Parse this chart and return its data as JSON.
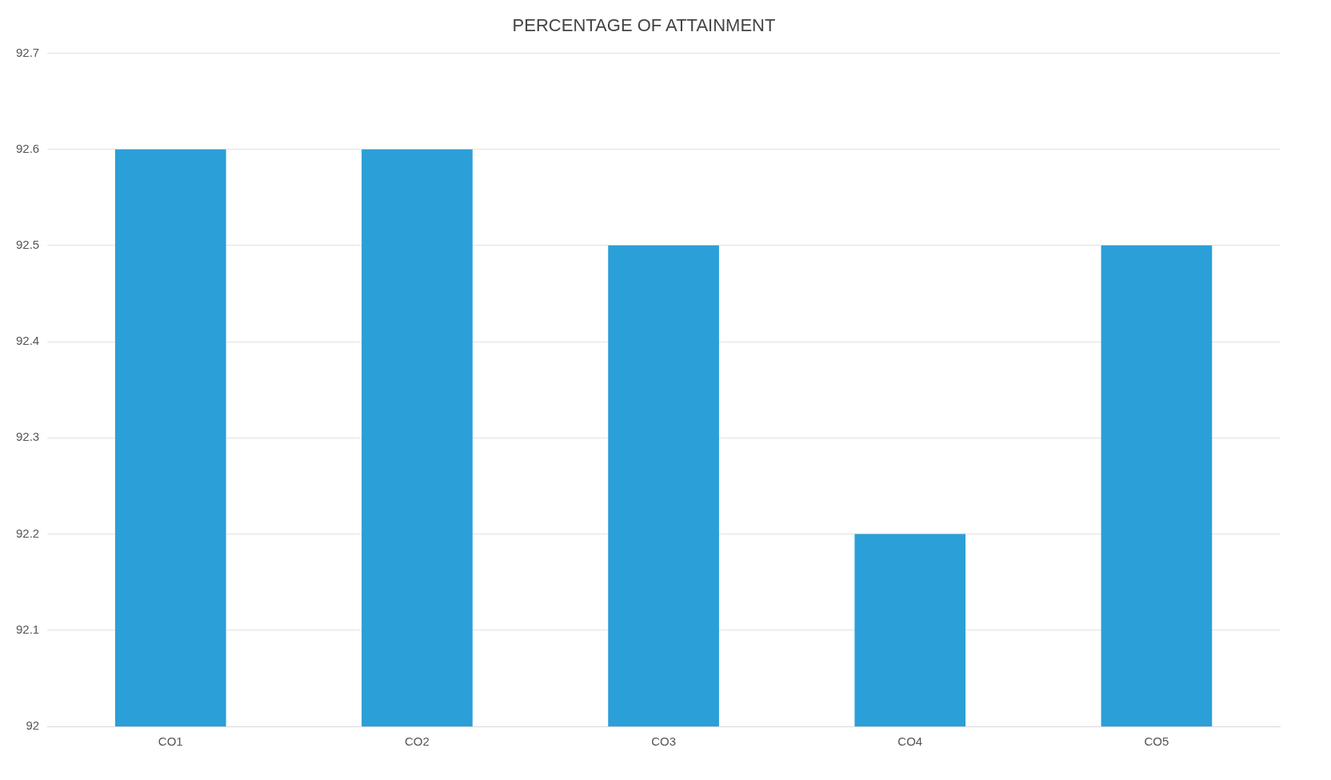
{
  "chart_data": {
    "type": "bar",
    "title": "PERCENTAGE OF ATTAINMENT",
    "categories": [
      "CO1",
      "CO2",
      "CO3",
      "CO4",
      "CO5"
    ],
    "values": [
      92.6,
      92.6,
      92.5,
      92.2,
      92.5
    ],
    "color": "#2b9fd8",
    "ylim": [
      92,
      92.7
    ],
    "yticks": [
      92,
      92.1,
      92.2,
      92.3,
      92.4,
      92.5,
      92.6,
      92.7
    ],
    "grid": "y"
  }
}
